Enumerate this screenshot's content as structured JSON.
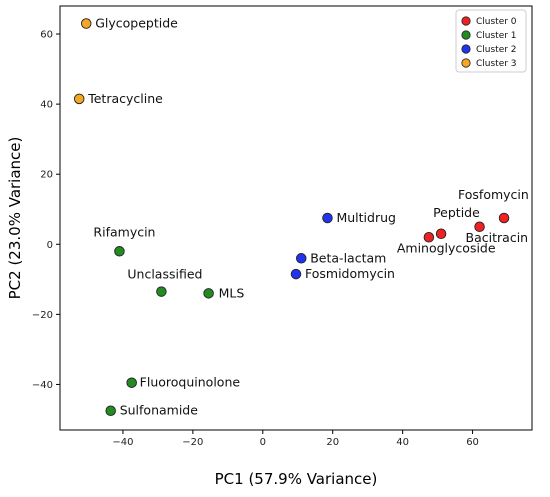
{
  "chart_data": {
    "type": "scatter",
    "xlabel": "PC1 (57.9% Variance)",
    "ylabel": "PC2 (23.0% Variance)",
    "xlim": [
      -58,
      77
    ],
    "ylim": [
      -53,
      68
    ],
    "x_ticks": [
      -40,
      -20,
      0,
      20,
      40,
      60
    ],
    "y_ticks": [
      -40,
      -20,
      0,
      20,
      40,
      60
    ],
    "x_tick_labels": [
      "−40",
      "−20",
      "0",
      "20",
      "40",
      "60"
    ],
    "y_tick_labels": [
      "−40",
      "−20",
      "0",
      "20",
      "40",
      "60"
    ],
    "grid": false,
    "legend_position": "top-right",
    "series": [
      {
        "name": "Cluster 0",
        "color": "#ee2222",
        "points": [
          {
            "label": "Peptide",
            "x": 51,
            "y": 3
          },
          {
            "label": "Aminoglycoside",
            "x": 47.5,
            "y": 2
          },
          {
            "label": "Bacitracin",
            "x": 62,
            "y": 5
          },
          {
            "label": "Fosfomycin",
            "x": 69,
            "y": 7.5
          }
        ]
      },
      {
        "name": "Cluster 1",
        "color": "#228b22",
        "points": [
          {
            "label": "Rifamycin",
            "x": -41,
            "y": -2
          },
          {
            "label": "Unclassified",
            "x": -29,
            "y": -13.5
          },
          {
            "label": "MLS",
            "x": -15.5,
            "y": -14
          },
          {
            "label": "Fluoroquinolone",
            "x": -37.5,
            "y": -39.5
          },
          {
            "label": "Sulfonamide",
            "x": -43.5,
            "y": -47.5
          }
        ]
      },
      {
        "name": "Cluster 2",
        "color": "#2233ee",
        "points": [
          {
            "label": "Multidrug",
            "x": 18.5,
            "y": 7.5
          },
          {
            "label": "Beta-lactam",
            "x": 11,
            "y": -4
          },
          {
            "label": "Fosmidomycin",
            "x": 9.5,
            "y": -8.5
          }
        ]
      },
      {
        "name": "Cluster 3",
        "color": "#f5a623",
        "points": [
          {
            "label": "Glycopeptide",
            "x": -50.5,
            "y": 63
          },
          {
            "label": "Tetracycline",
            "x": -52.5,
            "y": 41.5
          }
        ]
      }
    ]
  }
}
